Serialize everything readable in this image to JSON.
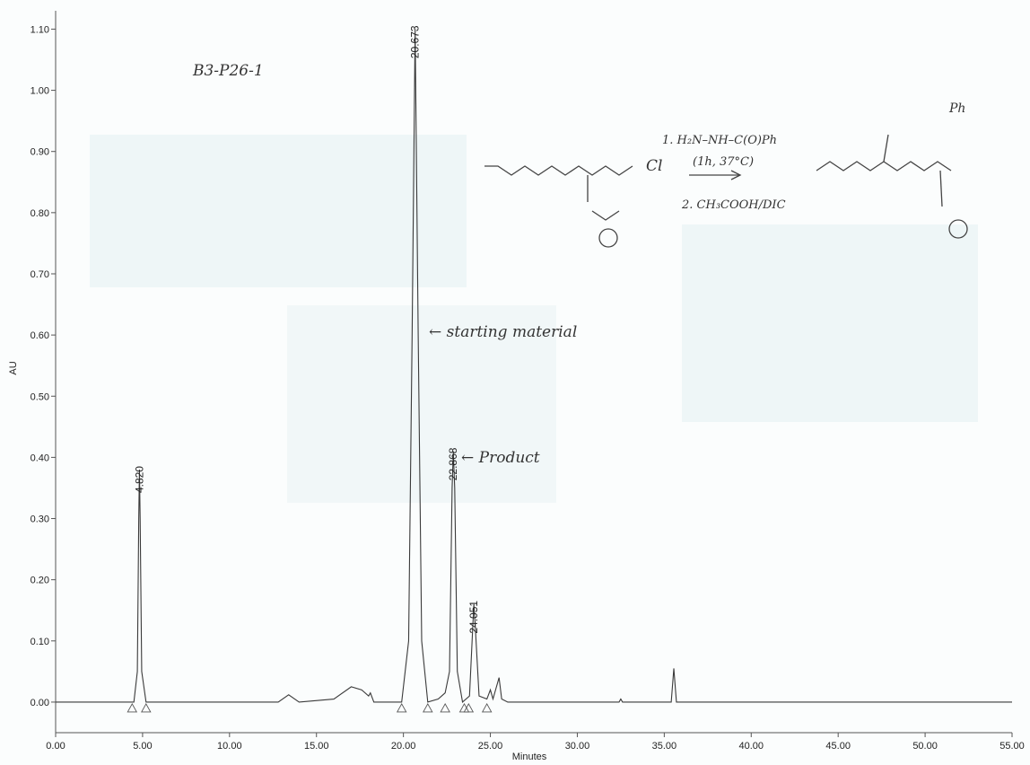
{
  "chart_data": {
    "type": "line",
    "y_label": "AU",
    "x_label": "Minutes",
    "xlim": [
      0,
      55
    ],
    "ylim": [
      -0.05,
      1.13
    ],
    "xticks": [
      {
        "value": 0,
        "label": "0.00"
      },
      {
        "value": 5,
        "label": "5.00"
      },
      {
        "value": 10,
        "label": "10.00"
      },
      {
        "value": 15,
        "label": "15.00"
      },
      {
        "value": 20,
        "label": "20.00"
      },
      {
        "value": 25,
        "label": "25.00"
      },
      {
        "value": 30,
        "label": "30.00"
      },
      {
        "value": 35,
        "label": "35.00"
      },
      {
        "value": 40,
        "label": "40.00"
      },
      {
        "value": 45,
        "label": "45.00"
      },
      {
        "value": 50,
        "label": "50.00"
      },
      {
        "value": 55,
        "label": "55.00"
      }
    ],
    "yticks": [
      {
        "value": 0,
        "label": "0.00"
      },
      {
        "value": 0.1,
        "label": "0.10"
      },
      {
        "value": 0.2,
        "label": "0.20"
      },
      {
        "value": 0.3,
        "label": "0.30"
      },
      {
        "value": 0.4,
        "label": "0.40"
      },
      {
        "value": 0.5,
        "label": "0.50"
      },
      {
        "value": 0.6,
        "label": "0.60"
      },
      {
        "value": 0.7,
        "label": "0.70"
      },
      {
        "value": 0.8,
        "label": "0.80"
      },
      {
        "value": 0.9,
        "label": "0.90"
      },
      {
        "value": 1.0,
        "label": "1.00"
      },
      {
        "value": 1.1,
        "label": "1.10"
      }
    ],
    "x": [
      0,
      4.5,
      4.7,
      4.78,
      4.82,
      4.86,
      4.95,
      5.2,
      12.8,
      13.4,
      14.0,
      16.0,
      17.0,
      17.6,
      18.0,
      18.1,
      18.3,
      19.9,
      20.3,
      20.5,
      20.673,
      20.85,
      21.05,
      21.4,
      22.0,
      22.4,
      22.65,
      22.8,
      22.868,
      22.95,
      23.1,
      23.4,
      23.8,
      24.0,
      24.051,
      24.12,
      24.35,
      24.8,
      25.0,
      25.15,
      25.4,
      25.5,
      25.65,
      26.0,
      32.4,
      32.5,
      32.6,
      35.4,
      35.55,
      35.7,
      55
    ],
    "series": [
      {
        "color": "#3a3a3a",
        "values": [
          0,
          0,
          0.05,
          0.3,
          0.38,
          0.3,
          0.05,
          0,
          0,
          0.012,
          0,
          0.005,
          0.025,
          0.02,
          0.01,
          0.015,
          0,
          0,
          0.1,
          0.6,
          1.1,
          0.6,
          0.1,
          0,
          0.005,
          0.015,
          0.05,
          0.35,
          0.41,
          0.35,
          0.05,
          0,
          0.01,
          0.13,
          0.16,
          0.13,
          0.01,
          0.005,
          0.02,
          0.005,
          0.03,
          0.04,
          0.005,
          0,
          0,
          0.005,
          0,
          0,
          0.055,
          0,
          0
        ]
      }
    ],
    "peak_labels": [
      {
        "value": 4.82,
        "label": "4.820"
      },
      {
        "value": 20.673,
        "label": "20.673"
      },
      {
        "value": 22.868,
        "label": "22.868"
      },
      {
        "value": 24.051,
        "label": "24.051"
      }
    ],
    "integration_marks": [
      4.4,
      5.2,
      19.9,
      21.4,
      22.4,
      23.5,
      23.75,
      24.8
    ],
    "annotations": [
      "B3-P26-1",
      "← starting material",
      "← Product",
      "1. H₂N–NH–C(O)Ph",
      "(1h, 37°C)",
      "2. CH₃COOH/DIC",
      "Cl",
      "Ph"
    ]
  }
}
